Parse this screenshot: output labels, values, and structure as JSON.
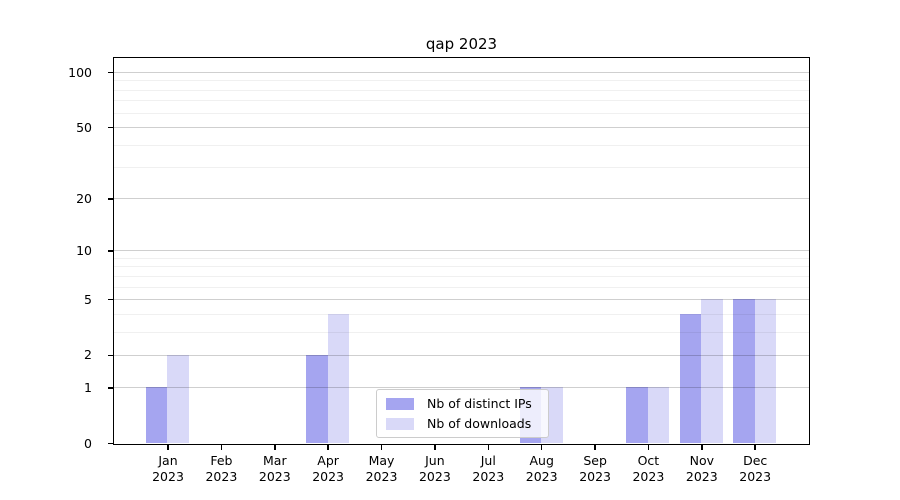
{
  "title": "qap 2023",
  "chart_data": {
    "type": "bar",
    "title": "qap 2023",
    "scale": "log1p",
    "grid": true,
    "legend_position": "lower center (inside plot, overlapping Aug)",
    "categories": [
      "Jan",
      "Feb",
      "Mar",
      "Apr",
      "May",
      "Jun",
      "Jul",
      "Aug",
      "Sep",
      "Oct",
      "Nov",
      "Dec"
    ],
    "year": "2023",
    "series": [
      {
        "key": "distinct-ips",
        "name": "Nb of distinct IPs",
        "color": "#a5a5f0",
        "values": [
          1,
          0,
          0,
          2,
          0,
          0,
          0,
          1,
          0,
          1,
          4,
          5
        ]
      },
      {
        "key": "downloads",
        "name": "Nb of downloads",
        "color": "#d9d9f8",
        "values": [
          2,
          0,
          0,
          4,
          0,
          0,
          0,
          1,
          0,
          1,
          5,
          5
        ]
      }
    ],
    "xlabel": "",
    "ylabel": "",
    "y_ticks": [
      0,
      1,
      2,
      5,
      10,
      20,
      50,
      100
    ],
    "minor_gridlines": [
      3,
      4,
      6,
      7,
      8,
      9,
      30,
      40,
      60,
      70,
      80,
      90
    ],
    "ylim": [
      0,
      119.3
    ]
  },
  "colors": {
    "major_grid": "rgba(0,0,0,0.19)",
    "minor_grid": "rgba(0,0,0,0.06)",
    "spine": "#000000",
    "legend_border": "#cccccc"
  }
}
